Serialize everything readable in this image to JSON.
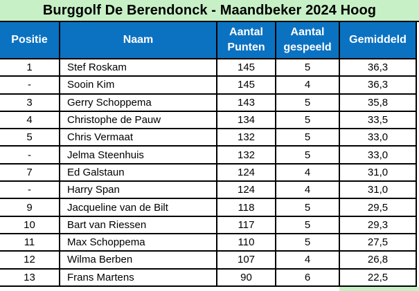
{
  "title": "Burggolf De Berendonck - Maandbeker 2024 Hoog",
  "columns": [
    "Positie",
    "Naam",
    "Aantal Punten",
    "Aantal gespeeld",
    "Gemiddeld"
  ],
  "rows": [
    {
      "positie": "1",
      "naam": "Stef Roskam",
      "punten": "145",
      "gespeeld": "5",
      "gemiddeld": "36,3"
    },
    {
      "positie": "-",
      "naam": "Sooin Kim",
      "punten": "145",
      "gespeeld": "4",
      "gemiddeld": "36,3"
    },
    {
      "positie": "3",
      "naam": "Gerry Schoppema",
      "punten": "143",
      "gespeeld": "5",
      "gemiddeld": "35,8"
    },
    {
      "positie": "4",
      "naam": "Christophe de Pauw",
      "punten": "134",
      "gespeeld": "5",
      "gemiddeld": "33,5"
    },
    {
      "positie": "5",
      "naam": "Chris Vermaat",
      "punten": "132",
      "gespeeld": "5",
      "gemiddeld": "33,0"
    },
    {
      "positie": "-",
      "naam": "Jelma Steenhuis",
      "punten": "132",
      "gespeeld": "5",
      "gemiddeld": "33,0"
    },
    {
      "positie": "7",
      "naam": "Ed Galstaun",
      "punten": "124",
      "gespeeld": "4",
      "gemiddeld": "31,0"
    },
    {
      "positie": "-",
      "naam": "Harry Span",
      "punten": "124",
      "gespeeld": "4",
      "gemiddeld": "31,0"
    },
    {
      "positie": "9",
      "naam": "Jacqueline van de Bilt",
      "punten": "118",
      "gespeeld": "5",
      "gemiddeld": "29,5"
    },
    {
      "positie": "10",
      "naam": "Bart van Riessen",
      "punten": "117",
      "gespeeld": "5",
      "gemiddeld": "29,3"
    },
    {
      "positie": "11",
      "naam": "Max Schoppema",
      "punten": "110",
      "gespeeld": "5",
      "gemiddeld": "27,5"
    },
    {
      "positie": "12",
      "naam": "Wilma Berben",
      "punten": "107",
      "gespeeld": "4",
      "gemiddeld": "26,8"
    },
    {
      "positie": "13",
      "naam": "Frans Martens",
      "punten": "90",
      "gespeeld": "6",
      "gemiddeld": "22,5"
    }
  ],
  "colors": {
    "title_bg": "#c7f0c6",
    "header_bg": "#0b72c2",
    "header_text": "#ffffff",
    "border": "#000000",
    "cell_bg": "#ffffff",
    "text": "#000000"
  }
}
